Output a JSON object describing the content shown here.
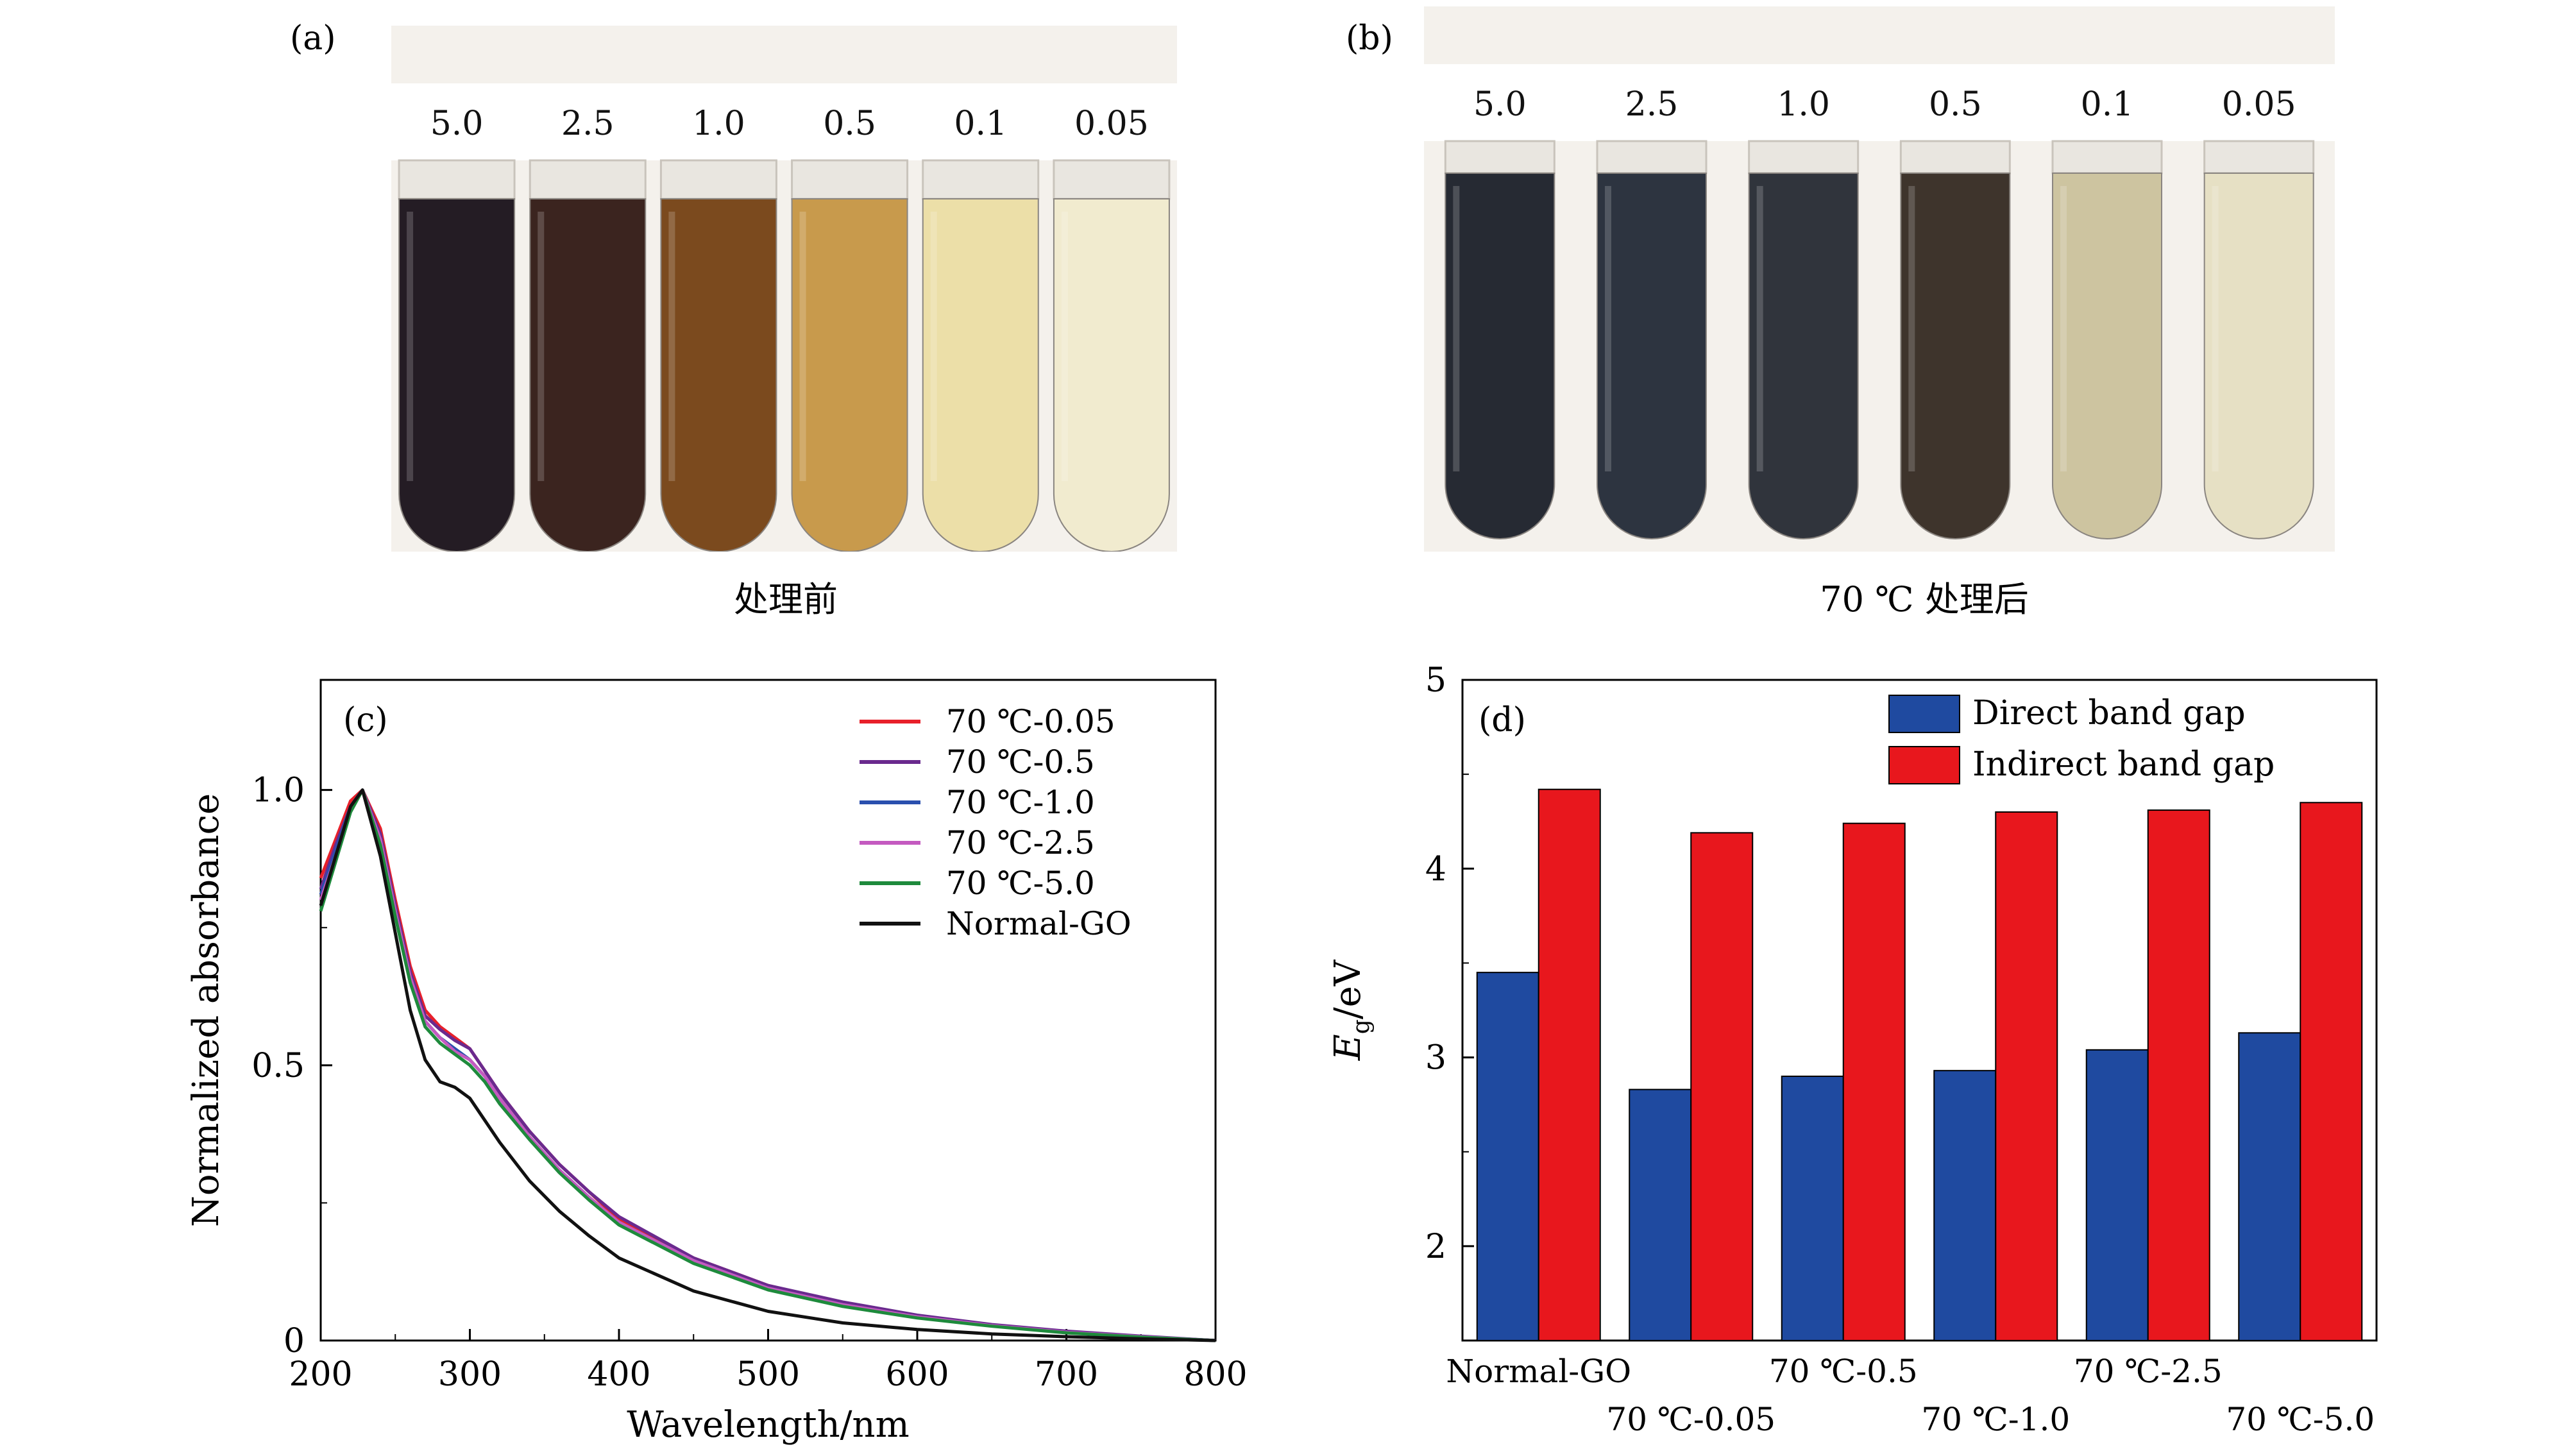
{
  "panel_a": {
    "label": "(a)",
    "caption": "处理前",
    "tube_labels": [
      "5.0",
      "2.5",
      "1.0",
      "0.5",
      "0.1",
      "0.05"
    ],
    "tube_colors": [
      "#241c24",
      "#3b241f",
      "#7b4a1e",
      "#c89a4c",
      "#ecdfa8",
      "#f1ebcf"
    ]
  },
  "panel_b": {
    "label": "(b)",
    "caption": "70 ℃ 处理后",
    "tube_labels": [
      "5.0",
      "2.5",
      "1.0",
      "0.5",
      "0.1",
      "0.05"
    ],
    "tube_colors": [
      "#262a33",
      "#2d3440",
      "#30343c",
      "#3e342c",
      "#cdc4a0",
      "#e6e0c4"
    ]
  },
  "chart_data": [
    {
      "type": "line",
      "panel_label": "(c)",
      "xlabel": "Wavelength/nm",
      "ylabel": "Normalized absorbance",
      "xlim": [
        200,
        800
      ],
      "ylim": [
        0,
        1.2
      ],
      "xticks": [
        "200",
        "300",
        "400",
        "500",
        "600",
        "700",
        "800"
      ],
      "yticks": [
        "0",
        "0.5",
        "1.0"
      ],
      "legend_position": "top-right",
      "x": [
        200,
        210,
        220,
        228,
        240,
        250,
        260,
        270,
        280,
        290,
        300,
        310,
        320,
        340,
        360,
        380,
        400,
        450,
        500,
        550,
        600,
        650,
        700,
        750,
        800
      ],
      "series": [
        {
          "name": "70 ℃-0.05",
          "color": "#e8202a",
          "values": [
            0.84,
            0.91,
            0.98,
            1.0,
            0.93,
            0.8,
            0.68,
            0.6,
            0.57,
            0.55,
            0.53,
            0.49,
            0.45,
            0.38,
            0.32,
            0.27,
            0.22,
            0.15,
            0.1,
            0.068,
            0.045,
            0.028,
            0.016,
            0.007,
            0.0
          ]
        },
        {
          "name": "70 ℃-0.5",
          "color": "#6a2a8e",
          "values": [
            0.82,
            0.9,
            0.97,
            1.0,
            0.92,
            0.79,
            0.67,
            0.59,
            0.565,
            0.545,
            0.53,
            0.49,
            0.45,
            0.38,
            0.32,
            0.27,
            0.225,
            0.15,
            0.1,
            0.07,
            0.046,
            0.029,
            0.017,
            0.008,
            0.0
          ]
        },
        {
          "name": "70 ℃-1.0",
          "color": "#2a4fae",
          "values": [
            0.81,
            0.89,
            0.97,
            1.0,
            0.91,
            0.78,
            0.66,
            0.58,
            0.55,
            0.53,
            0.51,
            0.48,
            0.44,
            0.37,
            0.31,
            0.26,
            0.215,
            0.145,
            0.095,
            0.065,
            0.043,
            0.027,
            0.015,
            0.007,
            0.0
          ]
        },
        {
          "name": "70 ℃-2.5",
          "color": "#c45ac0",
          "values": [
            0.8,
            0.88,
            0.97,
            1.0,
            0.91,
            0.78,
            0.66,
            0.58,
            0.55,
            0.525,
            0.51,
            0.48,
            0.44,
            0.37,
            0.31,
            0.26,
            0.215,
            0.145,
            0.095,
            0.065,
            0.043,
            0.027,
            0.015,
            0.007,
            0.0
          ]
        },
        {
          "name": "70 ℃-5.0",
          "color": "#1e8a3c",
          "values": [
            0.78,
            0.87,
            0.96,
            1.0,
            0.9,
            0.77,
            0.65,
            0.57,
            0.54,
            0.52,
            0.5,
            0.47,
            0.43,
            0.365,
            0.305,
            0.255,
            0.21,
            0.14,
            0.092,
            0.062,
            0.041,
            0.026,
            0.014,
            0.006,
            0.0
          ]
        },
        {
          "name": "Normal-GO",
          "color": "#111111",
          "values": [
            0.79,
            0.88,
            0.97,
            1.0,
            0.88,
            0.74,
            0.6,
            0.51,
            0.47,
            0.46,
            0.44,
            0.4,
            0.36,
            0.29,
            0.235,
            0.19,
            0.15,
            0.09,
            0.053,
            0.032,
            0.02,
            0.012,
            0.007,
            0.003,
            0.0
          ]
        }
      ]
    },
    {
      "type": "bar",
      "panel_label": "(d)",
      "ylabel_main": "E",
      "ylabel_sub": "g",
      "ylabel_suffix": "/eV",
      "ylim": [
        1.5,
        5
      ],
      "yticks": [
        "2",
        "3",
        "4",
        "5"
      ],
      "categories": [
        "Normal-GO",
        "70 ℃-0.05",
        "70 ℃-0.5",
        "70 ℃-1.0",
        "70 ℃-2.5",
        "70 ℃-5.0"
      ],
      "legend_position": "top-right",
      "series": [
        {
          "name": "Direct band gap",
          "color": "#1f4aa0",
          "values": [
            3.45,
            2.83,
            2.9,
            2.93,
            3.04,
            3.13
          ]
        },
        {
          "name": "Indirect band gap",
          "color": "#e8171d",
          "values": [
            4.42,
            4.19,
            4.24,
            4.3,
            4.31,
            4.35
          ]
        }
      ]
    }
  ]
}
